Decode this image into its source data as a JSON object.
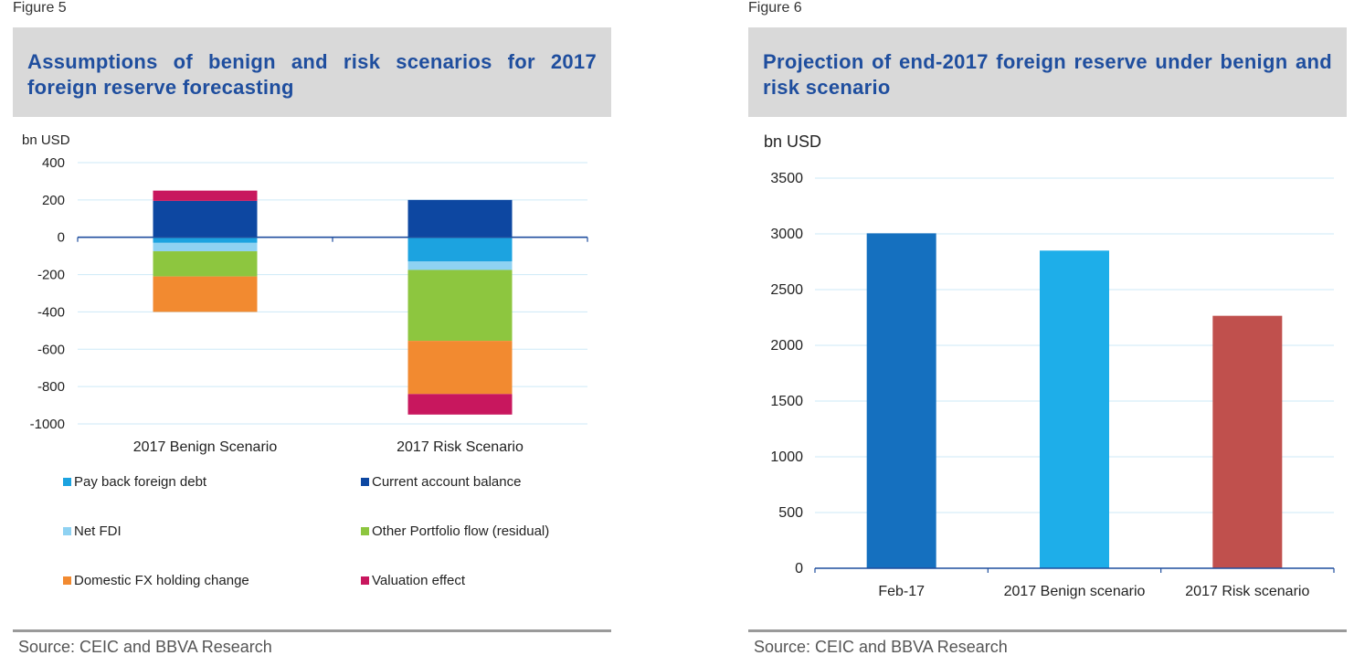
{
  "figure5": {
    "label": "Figure 5",
    "title": "Assumptions of benign and risk scenarios for 2017 foreign reserve forecasting",
    "source": "Source: CEIC and BBVA Research"
  },
  "figure6": {
    "label": "Figure 6",
    "title": "Projection of end-2017 foreign reserve under benign and risk scenario",
    "source": "Source: CEIC and BBVA Research"
  },
  "chart_data": [
    {
      "type": "bar",
      "stacked": true,
      "ylabel": "bn USD",
      "ylim": [
        -1000,
        400
      ],
      "yticks": [
        400,
        200,
        0,
        -200,
        -400,
        -600,
        -800,
        -1000
      ],
      "categories": [
        "2017 Benign Scenario",
        "2017 Risk Scenario"
      ],
      "series": [
        {
          "name": "Pay back foreign debt",
          "color": "#1ca3e0",
          "values": [
            -30,
            -130
          ]
        },
        {
          "name": "Current account balance",
          "color": "#0d47a1",
          "values": [
            195,
            200
          ]
        },
        {
          "name": "Net FDI",
          "color": "#8fd2f2",
          "values": [
            -45,
            -45
          ]
        },
        {
          "name": "Other Portfolio flow (residual)",
          "color": "#8dc63f",
          "values": [
            -135,
            -380
          ]
        },
        {
          "name": "Domestic FX holding change",
          "color": "#f28a30",
          "values": [
            -190,
            -285
          ]
        },
        {
          "name": "Valuation effect",
          "color": "#c8175e",
          "values": [
            55,
            -110
          ]
        }
      ],
      "legend_position": "bottom",
      "grid": true
    },
    {
      "type": "bar",
      "ylabel": "bn USD",
      "ylim": [
        0,
        3500
      ],
      "yticks": [
        3500,
        3000,
        2500,
        2000,
        1500,
        1000,
        500,
        0
      ],
      "categories": [
        "Feb-17",
        "2017 Benign scenario",
        "2017 Risk scenario"
      ],
      "values": [
        3005,
        2850,
        2265
      ],
      "colors": [
        "#1570bf",
        "#1eaee9",
        "#c0504d"
      ],
      "grid": true
    }
  ]
}
